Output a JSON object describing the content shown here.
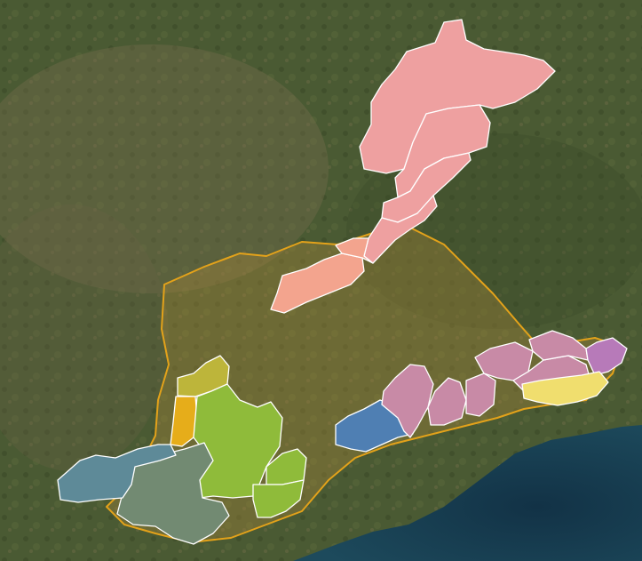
{
  "map": {
    "basemap": "satellite-imagery",
    "colors": {
      "land_dark": "#3b4a2a",
      "land_mid": "#5a6a3c",
      "land_light": "#7a7050",
      "ocean": "#1d4a5c",
      "ocean_deep": "#123246",
      "basin_fill": "#b08a3a",
      "basin_outline": "#e3a21a",
      "region_border": "#ffffff"
    },
    "regions": [
      {
        "id": "north-large",
        "color": "#eea0a0"
      },
      {
        "id": "north-upper",
        "color": "#eea0a0"
      },
      {
        "id": "north-mid",
        "color": "#eea0a0"
      },
      {
        "id": "north-lower",
        "color": "#eea0a0"
      },
      {
        "id": "salmon-west",
        "color": "#f3a48e"
      },
      {
        "id": "salmon-east",
        "color": "#f3a48e"
      },
      {
        "id": "steel-blue",
        "color": "#4f7fb3"
      },
      {
        "id": "mauve-1",
        "color": "#c88aa6"
      },
      {
        "id": "mauve-2",
        "color": "#c88aa6"
      },
      {
        "id": "mauve-3",
        "color": "#c88aa6"
      },
      {
        "id": "mauve-4",
        "color": "#c88aa6"
      },
      {
        "id": "mauve-5",
        "color": "#c88aa6"
      },
      {
        "id": "mauve-6",
        "color": "#c88aa6"
      },
      {
        "id": "violet-east",
        "color": "#b77ab9"
      },
      {
        "id": "yellow-coast",
        "color": "#f0de6e"
      },
      {
        "id": "olive-small",
        "color": "#bdb53a"
      },
      {
        "id": "orange-strip",
        "color": "#e6ad1a"
      },
      {
        "id": "green-large",
        "color": "#8fbb3a"
      },
      {
        "id": "green-east-1",
        "color": "#8fbb3a"
      },
      {
        "id": "green-east-2",
        "color": "#8fbb3a"
      },
      {
        "id": "gray-green",
        "color": "#728a72"
      },
      {
        "id": "slate-blue",
        "color": "#5e8a98"
      }
    ]
  }
}
